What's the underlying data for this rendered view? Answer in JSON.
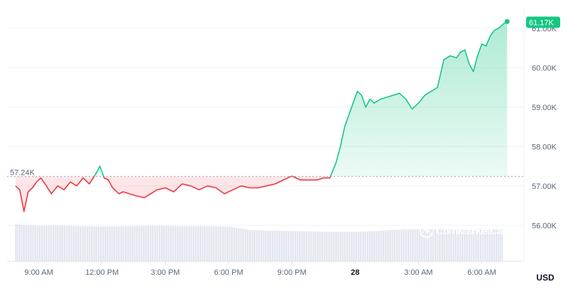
{
  "chart_data": {
    "type": "line",
    "title": "",
    "xlabel": "",
    "ylabel": "",
    "currency_label": "USD",
    "watermark": "CoinMarketCap",
    "open_price_label": "57.24K",
    "open_price": 57.24,
    "last_price_label": "61.17K",
    "last_price": 61.17,
    "ylim": [
      55.5,
      61.5
    ],
    "y_ticks": [
      {
        "value": 61.0,
        "label": "61.00K"
      },
      {
        "value": 60.0,
        "label": "60.00K"
      },
      {
        "value": 59.0,
        "label": "59.00K"
      },
      {
        "value": 58.0,
        "label": "58.00K"
      },
      {
        "value": 57.0,
        "label": "57.00K"
      },
      {
        "value": 56.0,
        "label": "56.00K"
      }
    ],
    "x_range": [
      7.5,
      32.0
    ],
    "x_ticks": [
      {
        "hour": 9,
        "label": "9:00 AM",
        "bold": false
      },
      {
        "hour": 12,
        "label": "12:00 PM",
        "bold": false
      },
      {
        "hour": 15,
        "label": "3:00 PM",
        "bold": false
      },
      {
        "hour": 18,
        "label": "6:00 PM",
        "bold": false
      },
      {
        "hour": 21,
        "label": "9:00 PM",
        "bold": false
      },
      {
        "hour": 24,
        "label": "28",
        "bold": true
      },
      {
        "hour": 27,
        "label": "3:00 AM",
        "bold": false
      },
      {
        "hour": 30,
        "label": "6:00 AM",
        "bold": false
      }
    ],
    "series": [
      {
        "values_unit": "thousand USD",
        "x_hours": [
          7.9,
          8.1,
          8.3,
          8.5,
          8.7,
          8.9,
          9.1,
          9.3,
          9.6,
          9.9,
          10.2,
          10.5,
          10.8,
          11.1,
          11.4,
          11.7,
          11.9,
          12.1,
          12.3,
          12.5,
          12.8,
          13.0,
          13.3,
          13.6,
          14.0,
          14.3,
          14.6,
          15.0,
          15.4,
          15.8,
          16.2,
          16.6,
          17.0,
          17.4,
          17.8,
          18.2,
          18.6,
          19.0,
          19.4,
          19.8,
          20.2,
          20.6,
          21.0,
          21.4,
          21.8,
          22.2,
          22.5,
          22.8,
          23.1,
          23.3,
          23.5,
          23.7,
          23.9,
          24.1,
          24.3,
          24.5,
          24.7,
          24.9,
          25.2,
          25.5,
          25.8,
          26.1,
          26.4,
          26.7,
          27.0,
          27.3,
          27.6,
          27.9,
          28.2,
          28.5,
          28.8,
          29.0,
          29.2,
          29.4,
          29.6,
          29.8,
          30.0,
          30.2,
          30.4,
          30.6,
          30.8,
          31.0,
          31.2
        ],
        "values": [
          57.0,
          56.9,
          56.35,
          56.85,
          56.95,
          57.1,
          57.2,
          57.05,
          56.8,
          57.0,
          56.9,
          57.1,
          57.0,
          57.2,
          57.05,
          57.3,
          57.5,
          57.2,
          57.15,
          56.95,
          56.8,
          56.85,
          56.8,
          56.75,
          56.7,
          56.8,
          56.9,
          56.95,
          56.85,
          57.05,
          57.0,
          56.9,
          57.0,
          56.95,
          56.8,
          56.9,
          57.0,
          56.95,
          56.95,
          57.0,
          57.05,
          57.15,
          57.25,
          57.15,
          57.15,
          57.15,
          57.2,
          57.2,
          57.6,
          58.0,
          58.5,
          58.8,
          59.1,
          59.4,
          59.3,
          59.0,
          59.2,
          59.1,
          59.2,
          59.25,
          59.3,
          59.35,
          59.2,
          58.95,
          59.1,
          59.3,
          59.4,
          59.5,
          60.2,
          60.3,
          60.25,
          60.4,
          60.45,
          60.1,
          59.9,
          60.3,
          60.6,
          60.55,
          60.8,
          60.95,
          61.0,
          61.1,
          61.17
        ]
      }
    ],
    "volume": {
      "x_hours": [
        8.0,
        9.0,
        10.0,
        11.0,
        12.0,
        13.0,
        14.0,
        15.0,
        16.0,
        17.0,
        18.0,
        19.0,
        20.0,
        21.0,
        22.0,
        23.0,
        24.0,
        25.0,
        26.0,
        27.0,
        28.0,
        29.0,
        30.0,
        31.0
      ],
      "relative_values": [
        1.0,
        0.96,
        0.97,
        0.95,
        0.94,
        0.95,
        0.96,
        0.96,
        0.95,
        0.95,
        0.94,
        0.85,
        0.83,
        0.82,
        0.81,
        0.8,
        0.8,
        0.82,
        0.86,
        0.87,
        0.87,
        0.86,
        0.86,
        0.87
      ]
    },
    "colors": {
      "up": "#16c784",
      "down": "#ea3943",
      "grid": "#eff2f5",
      "volume": "#cfd6e4",
      "baseline": "#a1a7bb",
      "text": "#58667e"
    },
    "grid": true,
    "legend": "none"
  }
}
